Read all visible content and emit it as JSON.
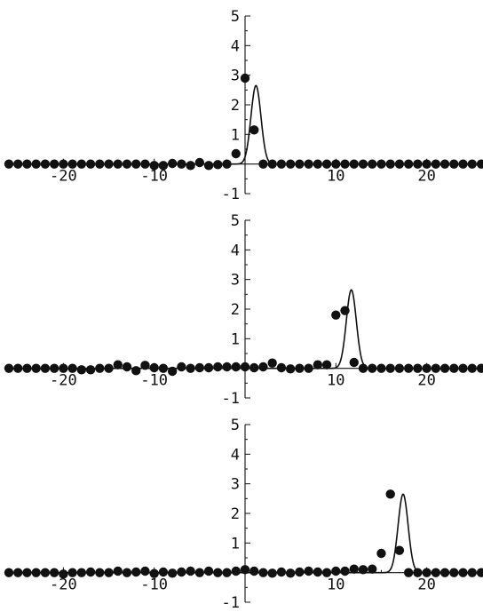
{
  "chart_data": [
    {
      "type": "scatter",
      "xlim": [
        -26,
        26
      ],
      "ylim": [
        -1,
        5
      ],
      "xticks": [
        -20,
        -10,
        10,
        20
      ],
      "xtick_labels": [
        "-20",
        "-10",
        "10",
        "20"
      ],
      "yticks": [
        -1,
        1,
        2,
        3,
        4,
        5
      ],
      "ytick_labels": [
        "-1",
        "1",
        "2",
        "3",
        "4",
        "5"
      ],
      "grid": false,
      "points": [
        [
          -26,
          0
        ],
        [
          -25,
          0
        ],
        [
          -24,
          0
        ],
        [
          -23,
          0
        ],
        [
          -22,
          0
        ],
        [
          -21,
          0
        ],
        [
          -20,
          0
        ],
        [
          -19,
          0
        ],
        [
          -18,
          0
        ],
        [
          -17,
          0
        ],
        [
          -16,
          0
        ],
        [
          -15,
          0
        ],
        [
          -14,
          0
        ],
        [
          -13,
          0
        ],
        [
          -12,
          0
        ],
        [
          -11,
          0
        ],
        [
          -10,
          -0.05
        ],
        [
          -9,
          -0.05
        ],
        [
          -8,
          0.02
        ],
        [
          -7,
          0
        ],
        [
          -6,
          -0.05
        ],
        [
          -5,
          0.05
        ],
        [
          -4,
          -0.05
        ],
        [
          -3,
          -0.02
        ],
        [
          -2,
          0
        ],
        [
          -1,
          0.35
        ],
        [
          0,
          2.9
        ],
        [
          1,
          1.15
        ],
        [
          2,
          0
        ],
        [
          3,
          0
        ],
        [
          4,
          0
        ],
        [
          5,
          0
        ],
        [
          6,
          0
        ],
        [
          7,
          0
        ],
        [
          8,
          0
        ],
        [
          9,
          0
        ],
        [
          10,
          0
        ],
        [
          11,
          0
        ],
        [
          12,
          0
        ],
        [
          13,
          0
        ],
        [
          14,
          0
        ],
        [
          15,
          0
        ],
        [
          16,
          0
        ],
        [
          17,
          0
        ],
        [
          18,
          0
        ],
        [
          19,
          0
        ],
        [
          20,
          0
        ],
        [
          21,
          0
        ],
        [
          22,
          0
        ],
        [
          23,
          0
        ],
        [
          24,
          0
        ],
        [
          25,
          0
        ],
        [
          26,
          0
        ]
      ],
      "curve": {
        "amplitude": 2.65,
        "center": 1.2,
        "width": 0.55
      }
    },
    {
      "type": "scatter",
      "xlim": [
        -26,
        26
      ],
      "ylim": [
        -1,
        5
      ],
      "xticks": [
        -20,
        -10,
        10,
        20
      ],
      "xtick_labels": [
        "-20",
        "-10",
        "10",
        "20"
      ],
      "yticks": [
        -1,
        1,
        2,
        3,
        4,
        5
      ],
      "ytick_labels": [
        "-1",
        "1",
        "2",
        "3",
        "4",
        "5"
      ],
      "grid": false,
      "points": [
        [
          -26,
          0
        ],
        [
          -25,
          0
        ],
        [
          -24,
          0
        ],
        [
          -23,
          0
        ],
        [
          -22,
          0
        ],
        [
          -21,
          0
        ],
        [
          -20,
          0
        ],
        [
          -19,
          0
        ],
        [
          -18,
          -0.05
        ],
        [
          -17,
          -0.05
        ],
        [
          -16,
          0
        ],
        [
          -15,
          0
        ],
        [
          -14,
          0.12
        ],
        [
          -13,
          0.05
        ],
        [
          -12,
          -0.08
        ],
        [
          -11,
          0.1
        ],
        [
          -10,
          0.02
        ],
        [
          -9,
          0
        ],
        [
          -8,
          -0.1
        ],
        [
          -7,
          0.05
        ],
        [
          -6,
          0
        ],
        [
          -5,
          0.02
        ],
        [
          -4,
          0.02
        ],
        [
          -3,
          0.05
        ],
        [
          -2,
          0.05
        ],
        [
          -1,
          0.05
        ],
        [
          0,
          0.05
        ],
        [
          1,
          0.02
        ],
        [
          2,
          0.05
        ],
        [
          3,
          0.18
        ],
        [
          4,
          0.02
        ],
        [
          5,
          -0.02
        ],
        [
          6,
          0
        ],
        [
          7,
          0
        ],
        [
          8,
          0.12
        ],
        [
          9,
          0.12
        ],
        [
          10,
          1.8
        ],
        [
          11,
          1.95
        ],
        [
          12,
          0.2
        ],
        [
          13,
          0
        ],
        [
          14,
          0
        ],
        [
          15,
          0
        ],
        [
          16,
          0
        ],
        [
          17,
          0
        ],
        [
          18,
          0
        ],
        [
          19,
          0
        ],
        [
          20,
          0
        ],
        [
          21,
          0
        ],
        [
          22,
          0
        ],
        [
          23,
          0
        ],
        [
          24,
          0
        ],
        [
          25,
          0
        ],
        [
          26,
          0
        ]
      ],
      "curve": {
        "amplitude": 2.65,
        "center": 11.7,
        "width": 0.55
      }
    },
    {
      "type": "scatter",
      "xlim": [
        -26,
        26
      ],
      "ylim": [
        -1,
        5
      ],
      "xticks": [
        -20,
        -10,
        10,
        20
      ],
      "xtick_labels": [
        "-20",
        "-10",
        "10",
        "20"
      ],
      "yticks": [
        -1,
        1,
        2,
        3,
        4,
        5
      ],
      "ytick_labels": [
        "-1",
        "1",
        "2",
        "3",
        "4",
        "5"
      ],
      "grid": false,
      "points": [
        [
          -26,
          0
        ],
        [
          -25,
          0
        ],
        [
          -24,
          0
        ],
        [
          -23,
          0
        ],
        [
          -22,
          0
        ],
        [
          -21,
          0
        ],
        [
          -20,
          -0.05
        ],
        [
          -19,
          0
        ],
        [
          -18,
          0
        ],
        [
          -17,
          0.02
        ],
        [
          -16,
          0
        ],
        [
          -15,
          0
        ],
        [
          -14,
          0.05
        ],
        [
          -13,
          0
        ],
        [
          -12,
          0.02
        ],
        [
          -11,
          0.05
        ],
        [
          -10,
          -0.03
        ],
        [
          -9,
          0.02
        ],
        [
          -8,
          -0.02
        ],
        [
          -7,
          0.02
        ],
        [
          -6,
          0.05
        ],
        [
          -5,
          0
        ],
        [
          -4,
          0.05
        ],
        [
          -3,
          0
        ],
        [
          -2,
          0
        ],
        [
          -1,
          0.05
        ],
        [
          0,
          0.1
        ],
        [
          1,
          0.05
        ],
        [
          2,
          0
        ],
        [
          3,
          -0.02
        ],
        [
          4,
          0.02
        ],
        [
          5,
          -0.02
        ],
        [
          6,
          0.02
        ],
        [
          7,
          0.05
        ],
        [
          8,
          0.02
        ],
        [
          9,
          0
        ],
        [
          10,
          0.05
        ],
        [
          11,
          0.05
        ],
        [
          12,
          0.12
        ],
        [
          13,
          0.1
        ],
        [
          14,
          0.12
        ],
        [
          15,
          0.65
        ],
        [
          16,
          2.65
        ],
        [
          17,
          0.75
        ],
        [
          18,
          0
        ],
        [
          19,
          0
        ],
        [
          20,
          0
        ],
        [
          21,
          0
        ],
        [
          22,
          0
        ],
        [
          23,
          0
        ],
        [
          24,
          0
        ],
        [
          25,
          0
        ],
        [
          26,
          0
        ]
      ],
      "curve": {
        "amplitude": 2.65,
        "center": 17.4,
        "width": 0.55
      }
    }
  ]
}
